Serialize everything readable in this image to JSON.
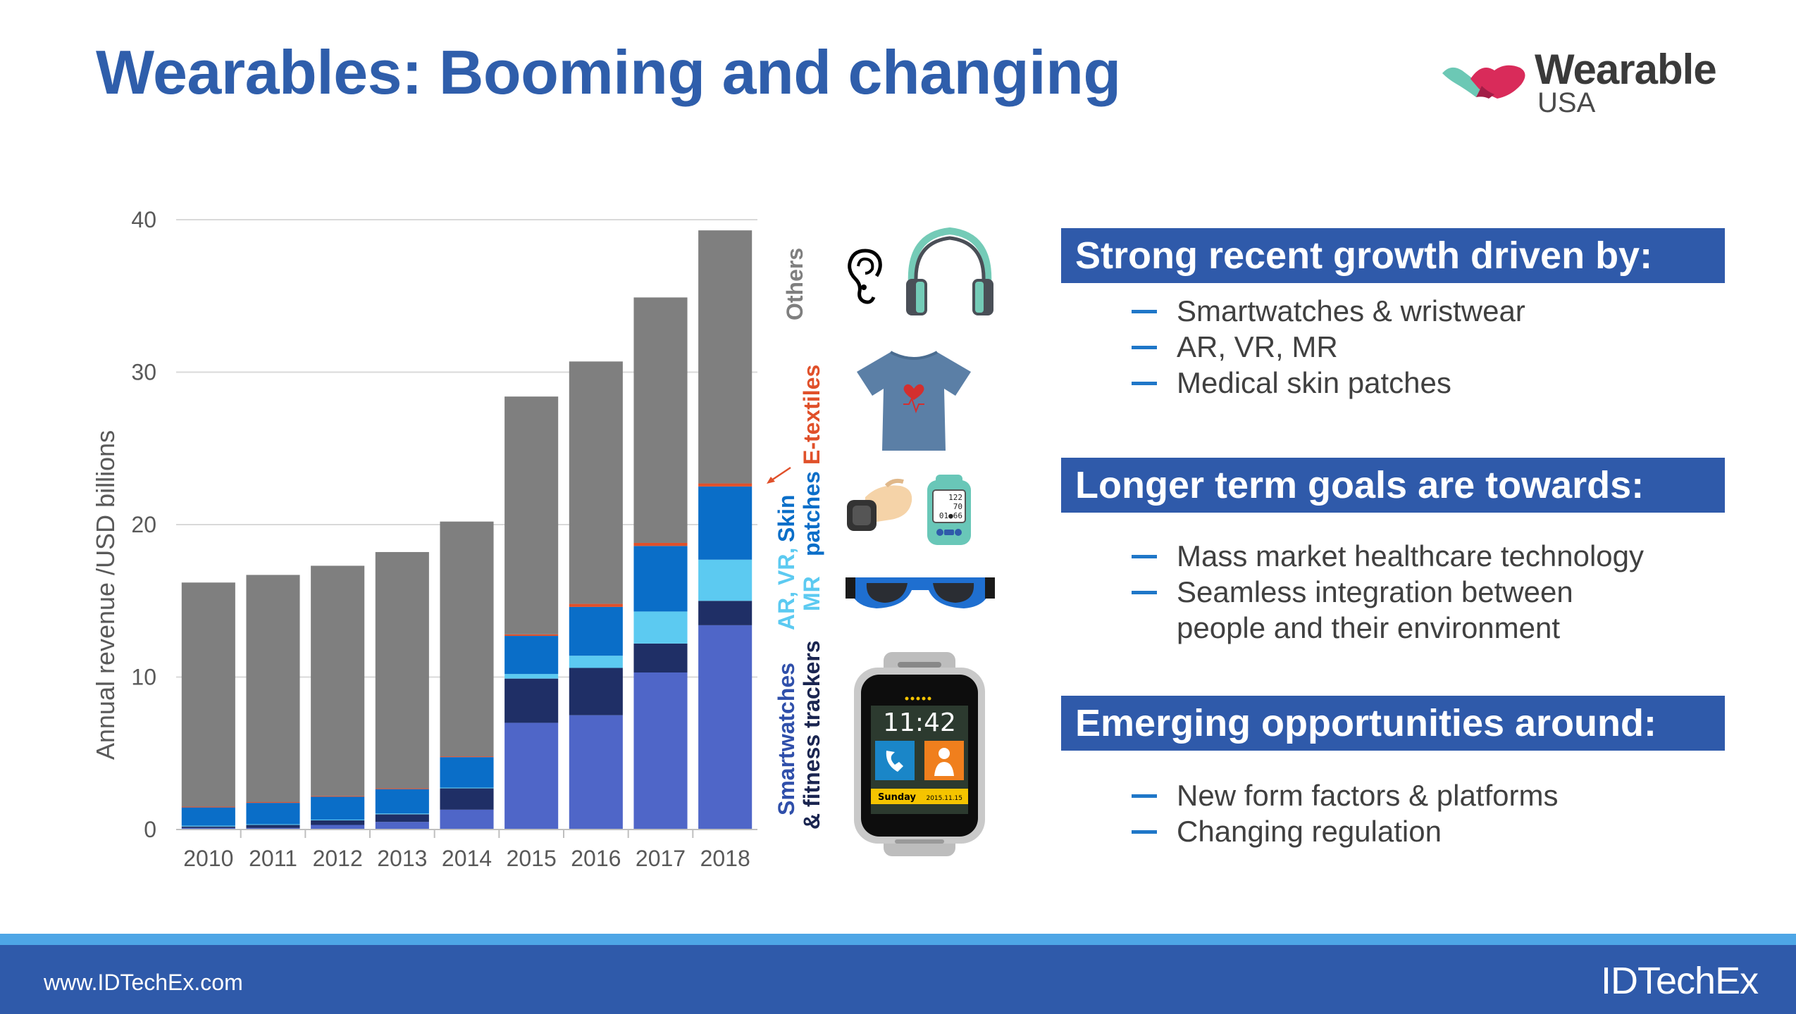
{
  "title": "Wearables: Booming and changing",
  "logo": {
    "word": "Wearable",
    "sub": "USA"
  },
  "chart_data": {
    "type": "bar",
    "stacked": true,
    "ylabel": "Annual revenue /USD billions",
    "ylim": [
      0,
      40
    ],
    "yticks": [
      0,
      10,
      20,
      30,
      40
    ],
    "grid": true,
    "categories": [
      "2010",
      "2011",
      "2012",
      "2013",
      "2014",
      "2015",
      "2016",
      "2017",
      "2018"
    ],
    "series": [
      {
        "name": "Smartwatches & fitness trackers",
        "color": "#4f66c8",
        "values": [
          0.1,
          0.1,
          0.3,
          0.5,
          1.3,
          7.0,
          7.5,
          10.3,
          13.4
        ]
      },
      {
        "name": "",
        "color": "#1f2f66",
        "values": [
          0.1,
          0.2,
          0.3,
          0.5,
          1.4,
          2.9,
          3.1,
          1.9,
          1.6
        ]
      },
      {
        "name": "AR, VR, MR",
        "color": "#5ccaf1",
        "values": [
          0.05,
          0.05,
          0.05,
          0.05,
          0.05,
          0.3,
          0.8,
          2.1,
          2.7
        ]
      },
      {
        "name": "Skin patches",
        "color": "#0a6ec8",
        "values": [
          1.2,
          1.4,
          1.5,
          1.6,
          2.0,
          2.5,
          3.2,
          4.3,
          4.8
        ]
      },
      {
        "name": "E-textiles",
        "color": "#e0502a",
        "values": [
          0.05,
          0.05,
          0.05,
          0.05,
          0.05,
          0.1,
          0.2,
          0.2,
          0.2
        ]
      },
      {
        "name": "Others",
        "color": "#7f7f7f",
        "values": [
          14.7,
          14.9,
          15.1,
          15.5,
          15.4,
          15.6,
          15.9,
          16.1,
          16.6
        ]
      }
    ]
  },
  "category_labels": {
    "others": "Others",
    "etextiles": "E-textiles",
    "skin_line1": "Skin",
    "skin_line2": "patches",
    "arvr_line1": "AR, VR,",
    "arvr_line2": "MR",
    "sw_line1": "Smartwatches",
    "sw_line2": "& fitness trackers"
  },
  "smartwatch_screen": {
    "time": "11:42",
    "day": "Sunday",
    "date": "2015.11.15"
  },
  "patch_monitor": {
    "line1": "122",
    "line2": "70",
    "line3": "01●66"
  },
  "sections": [
    {
      "heading": "Strong recent growth driven by:",
      "bullets": [
        "Smartwatches & wristwear",
        "AR, VR, MR",
        "Medical skin patches"
      ]
    },
    {
      "heading": "Longer term goals are towards:",
      "bullets": [
        "Mass market healthcare technology",
        "Seamless integration between",
        "people and their environment"
      ]
    },
    {
      "heading": "Emerging opportunities around:",
      "bullets": [
        "New form factors & platforms",
        "Changing regulation"
      ]
    }
  ],
  "footer": {
    "url": "www.IDTechEx.com",
    "brand": "IDTechEx"
  },
  "colors": {
    "accent_blue": "#2f5aaa",
    "title_blue": "#2f5eab",
    "bullet_dash": "#1f77c8"
  }
}
